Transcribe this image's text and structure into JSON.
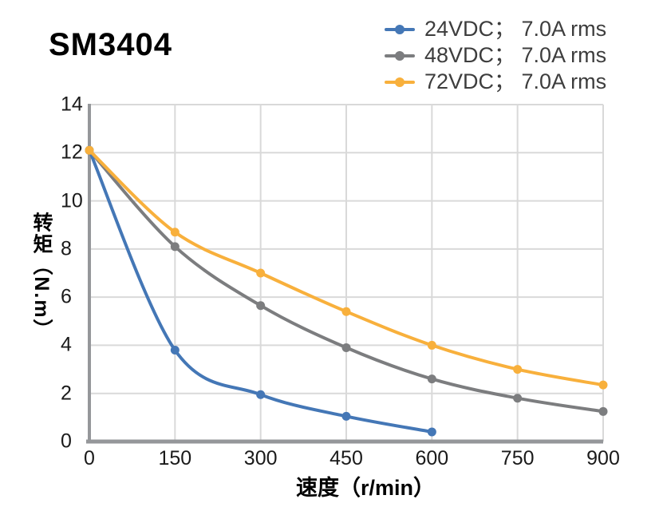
{
  "chart_data": {
    "type": "line",
    "title": "SM3404",
    "xlabel": "速度（r/min）",
    "ylabel": "转矩（N.m）",
    "xlim": [
      0,
      900
    ],
    "ylim": [
      0,
      14
    ],
    "x_ticks": [
      0,
      150,
      300,
      450,
      600,
      750,
      900
    ],
    "y_ticks": [
      0,
      2,
      4,
      6,
      8,
      10,
      12,
      14
    ],
    "grid": true,
    "smooth_lines": true,
    "legend_position": "top-right",
    "x": [
      0,
      150,
      300,
      450,
      600,
      750,
      900
    ],
    "series": [
      {
        "name": "24VDC； 7.0A rms",
        "color": "#4477B6",
        "values": [
          12.1,
          3.8,
          1.95,
          1.05,
          0.4,
          null,
          null
        ]
      },
      {
        "name": "48VDC； 7.0A rms",
        "color": "#7C7D7F",
        "values": [
          12.1,
          8.1,
          5.65,
          3.9,
          2.6,
          1.8,
          1.25
        ]
      },
      {
        "name": "72VDC； 7.0A rms",
        "color": "#F8B03C",
        "values": [
          12.1,
          8.7,
          7.0,
          5.4,
          4.0,
          3.0,
          2.35
        ]
      }
    ]
  },
  "style": {
    "grid_color": "#D9D9D9",
    "axis_color": "#95979A",
    "tick_color": "#1A1A1A",
    "legend_text_color": "#3D3D3D",
    "title_color": "#000000",
    "background": "#FFFFFF"
  }
}
